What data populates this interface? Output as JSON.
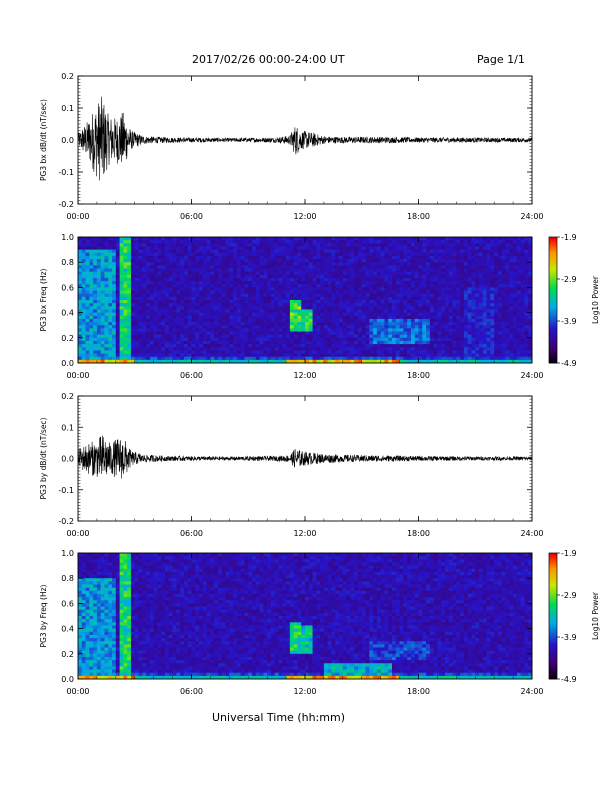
{
  "header": {
    "title": "2017/02/26  00:00-24:00 UT",
    "page": "Page 1/1"
  },
  "xlabel": "Universal Time (hh:mm)",
  "colors": {
    "trace": "#000000",
    "background": "#ffffff"
  },
  "chart_data": [
    {
      "type": "line",
      "ylabel": "PG3 bx dB/dt (nT/sec)",
      "ylim": [
        -0.2,
        0.2
      ],
      "yticks": [
        "0.2",
        "0.1",
        "0.0",
        "-0.1",
        "-0.2"
      ],
      "xticks": [
        "00:00",
        "06:00",
        "12:00",
        "18:00",
        "24:00"
      ],
      "xlim_hours": [
        0,
        24
      ],
      "envelope": {
        "x": [
          0,
          0.5,
          1.0,
          1.3,
          1.6,
          2.0,
          2.4,
          2.8,
          3.5,
          5.0,
          8.0,
          10.5,
          11.2,
          11.5,
          11.8,
          12.3,
          13.0,
          14.0,
          16.0,
          18.0,
          20.0,
          22.0,
          24.0
        ],
        "amp": [
          0.02,
          0.06,
          0.12,
          0.14,
          0.08,
          0.07,
          0.09,
          0.03,
          0.012,
          0.008,
          0.006,
          0.008,
          0.015,
          0.05,
          0.03,
          0.025,
          0.012,
          0.01,
          0.01,
          0.008,
          0.008,
          0.007,
          0.007
        ]
      }
    },
    {
      "type": "heatmap",
      "ylabel": "PG3 bx Freq (Hz)",
      "ylim": [
        0.0,
        1.0
      ],
      "yticks": [
        "1.0",
        "0.8",
        "0.6",
        "0.4",
        "0.2",
        "0.0"
      ],
      "xticks": [
        "00:00",
        "06:00",
        "12:00",
        "18:00",
        "24:00"
      ],
      "colorbar": {
        "label": "Log10 Power",
        "ticks": [
          "-1.9",
          "-2.9",
          "-3.9",
          "-4.9"
        ],
        "range": [
          -4.9,
          -1.9
        ]
      },
      "features": [
        {
          "t0": 0,
          "t1": 1.9,
          "f0": 0.0,
          "f1": 0.9,
          "level": 0.45
        },
        {
          "t0": 2.3,
          "t1": 2.7,
          "f0": 0.0,
          "f1": 1.0,
          "level": 0.6
        },
        {
          "t0": 11.3,
          "t1": 11.8,
          "f0": 0.25,
          "f1": 0.5,
          "level": 0.65
        },
        {
          "t0": 11.9,
          "t1": 12.4,
          "f0": 0.25,
          "f1": 0.42,
          "level": 0.6
        },
        {
          "t0": 15.5,
          "t1": 18.5,
          "f0": 0.15,
          "f1": 0.35,
          "level": 0.4
        },
        {
          "t0": 20.5,
          "t1": 22.0,
          "f0": 0.0,
          "f1": 0.6,
          "level": 0.3
        }
      ]
    },
    {
      "type": "line",
      "ylabel": "PG3 by dB/dt (nT/sec)",
      "ylim": [
        -0.2,
        0.2
      ],
      "yticks": [
        "0.2",
        "0.1",
        "0.0",
        "-0.1",
        "-0.2"
      ],
      "xticks": [
        "00:00",
        "06:00",
        "12:00",
        "18:00",
        "24:00"
      ],
      "xlim_hours": [
        0,
        24
      ],
      "envelope": {
        "x": [
          0,
          0.5,
          1.0,
          1.3,
          1.7,
          2.2,
          2.5,
          2.8,
          3.5,
          5.0,
          8.0,
          10.5,
          11.2,
          11.5,
          11.8,
          12.3,
          13.0,
          14.0,
          16.0,
          18.0,
          20.0,
          22.0,
          24.0
        ],
        "amp": [
          0.03,
          0.05,
          0.06,
          0.08,
          0.05,
          0.07,
          0.06,
          0.025,
          0.012,
          0.008,
          0.006,
          0.008,
          0.012,
          0.035,
          0.025,
          0.02,
          0.015,
          0.012,
          0.01,
          0.008,
          0.007,
          0.006,
          0.006
        ]
      }
    },
    {
      "type": "heatmap",
      "ylabel": "PG3 by Freq (Hz)",
      "ylim": [
        0.0,
        1.0
      ],
      "yticks": [
        "1.0",
        "0.8",
        "0.6",
        "0.4",
        "0.2",
        "0.0"
      ],
      "xticks": [
        "00:00",
        "06:00",
        "12:00",
        "18:00",
        "24:00"
      ],
      "colorbar": {
        "label": "Log10 Power",
        "ticks": [
          "-1.9",
          "-2.9",
          "-3.9",
          "-4.9"
        ],
        "range": [
          -4.9,
          -1.9
        ]
      },
      "features": [
        {
          "t0": 0,
          "t1": 1.9,
          "f0": 0.0,
          "f1": 0.8,
          "level": 0.45
        },
        {
          "t0": 2.3,
          "t1": 2.7,
          "f0": 0.0,
          "f1": 1.0,
          "level": 0.6
        },
        {
          "t0": 11.3,
          "t1": 11.8,
          "f0": 0.2,
          "f1": 0.45,
          "level": 0.6
        },
        {
          "t0": 11.9,
          "t1": 12.4,
          "f0": 0.2,
          "f1": 0.42,
          "level": 0.55
        },
        {
          "t0": 13.0,
          "t1": 16.5,
          "f0": 0.0,
          "f1": 0.12,
          "level": 0.5
        },
        {
          "t0": 15.5,
          "t1": 18.5,
          "f0": 0.15,
          "f1": 0.3,
          "level": 0.35
        }
      ]
    }
  ]
}
